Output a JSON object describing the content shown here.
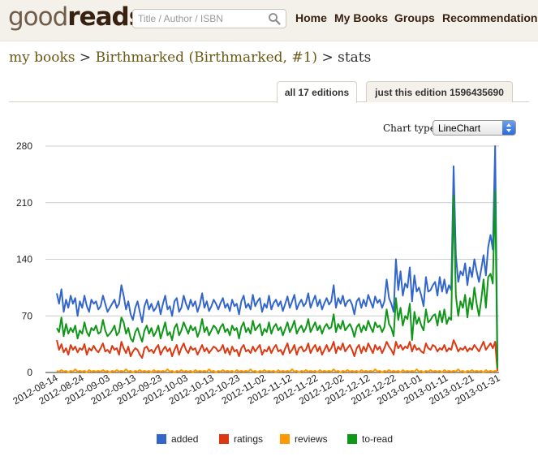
{
  "header": {
    "logo_good": "good",
    "logo_reads": "reads",
    "search_placeholder": "Title / Author / ISBN",
    "nav": [
      "Home",
      "My Books",
      "Groups",
      "Recommendations"
    ]
  },
  "breadcrumb": {
    "part1": "my books",
    "sep1": " > ",
    "part2": "Birthmarked (Birthmarked, #1)",
    "sep2": " > ",
    "part3": "stats"
  },
  "tabs": [
    {
      "label": "all 17 editions",
      "active": true
    },
    {
      "label": "just this edition 1596435690",
      "active": false
    }
  ],
  "chart_type": {
    "label": "Chart type",
    "selected": "LineChart"
  },
  "chart_data": {
    "type": "line",
    "ylim": [
      0,
      280
    ],
    "yticks": [
      0,
      70,
      140,
      210,
      280
    ],
    "x_tick_labels": [
      "2012-08-14",
      "2012-08-24",
      "2012-09-03",
      "2012-09-13",
      "2012-09-23",
      "2012-10-03",
      "2012-10-13",
      "2012-10-23",
      "2012-11-02",
      "2012-11-12",
      "2012-11-22",
      "2012-12-02",
      "2012-12-12",
      "2012-12-22",
      "2013-01-01",
      "2013-01-11",
      "2013-01-21",
      "2013-01-31"
    ],
    "grid": true,
    "legend_position": "bottom",
    "series": [
      {
        "name": "added",
        "color": "#3366cc",
        "values": [
          98,
          85,
          103,
          75,
          90,
          80,
          95,
          85,
          92,
          70,
          88,
          80,
          95,
          82,
          75,
          90,
          85,
          88,
          78,
          82,
          95,
          85,
          75,
          80,
          85,
          90,
          80,
          85,
          108,
          95,
          78,
          88,
          72,
          65,
          80,
          88,
          75,
          62,
          82,
          90,
          78,
          85,
          76,
          80,
          88,
          72,
          85,
          95,
          78,
          82,
          70,
          88,
          92,
          75,
          80,
          95,
          85,
          78,
          90,
          82,
          88,
          75,
          84,
          98,
          80,
          88,
          76,
          82,
          90,
          85,
          78,
          86,
          92,
          80,
          85,
          76,
          90,
          82,
          85,
          72,
          88,
          95,
          80,
          85,
          78,
          96,
          82,
          88,
          92,
          75,
          85,
          80,
          95,
          78,
          86,
          90,
          82,
          88,
          76,
          85,
          94,
          80,
          88,
          96,
          78,
          85,
          90,
          82,
          86,
          98,
          80,
          88,
          95,
          82,
          90,
          78,
          86,
          92,
          84,
          88,
          108,
          80,
          92,
          85,
          95,
          82,
          88,
          90,
          84,
          72,
          88,
          92,
          80,
          90,
          82,
          96,
          88,
          80,
          94,
          86,
          90,
          80,
          88,
          115,
          92,
          85,
          75,
          140,
          102,
          125,
          95,
          110,
          105,
          130,
          88,
          120,
          100,
          105,
          95,
          82,
          118,
          100,
          102,
          108,
          112,
          95,
          118,
          100,
          115,
          98,
          108,
          102,
          255,
          145,
          112,
          125,
          120,
          135,
          108,
          130,
          118,
          140,
          125,
          112,
          128,
          145,
          120,
          155,
          170,
          152,
          280,
          15
        ]
      },
      {
        "name": "ratings",
        "color": "#dc3912",
        "values": [
          40,
          28,
          35,
          25,
          30,
          22,
          34,
          28,
          32,
          25,
          30,
          28,
          35,
          22,
          30,
          27,
          33,
          28,
          25,
          30,
          36,
          26,
          28,
          24,
          33,
          28,
          30,
          22,
          38,
          30,
          24,
          32,
          20,
          26,
          30,
          28,
          22,
          18,
          30,
          32,
          26,
          28,
          24,
          30,
          34,
          22,
          28,
          32,
          26,
          30,
          20,
          28,
          34,
          22,
          30,
          36,
          28,
          24,
          32,
          28,
          30,
          22,
          28,
          34,
          26,
          30,
          24,
          28,
          32,
          30,
          26,
          28,
          34,
          24,
          30,
          22,
          32,
          26,
          28,
          20,
          30,
          34,
          26,
          28,
          24,
          32,
          26,
          30,
          34,
          22,
          28,
          26,
          32,
          24,
          30,
          34,
          26,
          28,
          22,
          30,
          36,
          24,
          28,
          34,
          22,
          30,
          32,
          26,
          28,
          36,
          24,
          30,
          34,
          26,
          32,
          22,
          28,
          34,
          26,
          30,
          38,
          24,
          32,
          28,
          36,
          26,
          30,
          34,
          28,
          20,
          30,
          34,
          24,
          32,
          26,
          36,
          30,
          24,
          34,
          28,
          32,
          24,
          30,
          38,
          32,
          28,
          22,
          38,
          30,
          34,
          28,
          32,
          30,
          38,
          26,
          34,
          28,
          30,
          26,
          24,
          36,
          30,
          28,
          34,
          32,
          26,
          30,
          28,
          34,
          26,
          30,
          28,
          40,
          34,
          26,
          30,
          28,
          32,
          26,
          30,
          28,
          34,
          30,
          26,
          32,
          38,
          28,
          32,
          36,
          30,
          38,
          2
        ]
      },
      {
        "name": "reviews",
        "color": "#ff9900",
        "values": [
          2,
          1,
          3,
          1,
          2,
          0,
          2,
          1,
          4,
          1,
          2,
          1,
          2,
          0,
          3,
          1,
          2,
          1,
          2,
          1,
          3,
          1,
          2,
          0,
          2,
          1,
          3,
          1,
          2,
          1,
          4,
          1,
          2,
          0,
          2,
          1,
          3,
          1,
          2,
          1,
          2,
          0,
          3,
          1,
          2,
          1,
          2,
          1,
          4,
          1,
          2,
          0,
          2,
          1,
          3,
          1,
          2,
          1,
          2,
          0,
          3,
          1,
          2,
          1,
          2,
          1,
          4,
          1,
          2,
          0,
          2,
          1,
          3,
          1,
          2,
          1,
          2,
          0,
          3,
          1,
          2,
          1,
          2,
          1,
          4,
          1,
          2,
          0,
          2,
          1,
          3,
          1,
          2,
          1,
          2,
          0,
          3,
          1,
          2,
          1,
          2,
          1,
          4,
          1,
          2,
          0,
          2,
          1,
          3,
          1,
          2,
          1,
          2,
          0,
          3,
          1,
          2,
          1,
          2,
          1,
          4,
          1,
          2,
          0,
          2,
          1,
          3,
          1,
          2,
          1,
          2,
          0,
          3,
          1,
          2,
          1,
          2,
          1,
          4,
          1,
          2,
          0,
          2,
          1,
          3,
          1,
          2,
          1,
          2,
          0,
          3,
          1,
          2,
          1,
          2,
          1,
          4,
          1,
          2,
          0,
          2,
          1,
          3,
          1,
          2,
          1,
          2,
          0,
          3,
          1,
          2,
          1,
          2,
          1,
          4,
          1,
          2,
          0,
          2,
          1,
          3,
          1,
          2,
          1,
          2,
          0,
          3,
          1,
          2,
          1,
          2,
          1
        ]
      },
      {
        "name": "to-read",
        "color": "#109618",
        "values": [
          55,
          50,
          68,
          45,
          60,
          48,
          55,
          50,
          58,
          42,
          52,
          48,
          62,
          50,
          45,
          55,
          52,
          58,
          48,
          50,
          65,
          52,
          45,
          48,
          52,
          58,
          46,
          50,
          68,
          62,
          48,
          55,
          42,
          38,
          50,
          55,
          46,
          38,
          52,
          58,
          48,
          55,
          45,
          50,
          58,
          42,
          52,
          62,
          46,
          50,
          40,
          55,
          60,
          46,
          52,
          62,
          55,
          48,
          58,
          52,
          56,
          44,
          52,
          66,
          50,
          56,
          46,
          52,
          58,
          55,
          48,
          56,
          60,
          50,
          54,
          46,
          58,
          52,
          55,
          42,
          56,
          62,
          50,
          55,
          48,
          64,
          52,
          56,
          60,
          46,
          54,
          50,
          62,
          48,
          56,
          60,
          52,
          56,
          46,
          54,
          62,
          50,
          56,
          64,
          48,
          54,
          58,
          50,
          55,
          66,
          50,
          56,
          62,
          52,
          58,
          48,
          56,
          60,
          54,
          56,
          72,
          50,
          60,
          54,
          64,
          52,
          56,
          60,
          54,
          44,
          56,
          60,
          50,
          58,
          52,
          64,
          56,
          50,
          62,
          56,
          58,
          50,
          56,
          78,
          60,
          55,
          45,
          92,
          65,
          80,
          58,
          70,
          66,
          85,
          40,
          75,
          60,
          68,
          58,
          52,
          78,
          62,
          65,
          70,
          72,
          58,
          76,
          62,
          78,
          60,
          68,
          65,
          218,
          95,
          70,
          88,
          80,
          96,
          68,
          92,
          78,
          105,
          85,
          70,
          90,
          115,
          80,
          118,
          122,
          110,
          225,
          5
        ]
      }
    ]
  }
}
